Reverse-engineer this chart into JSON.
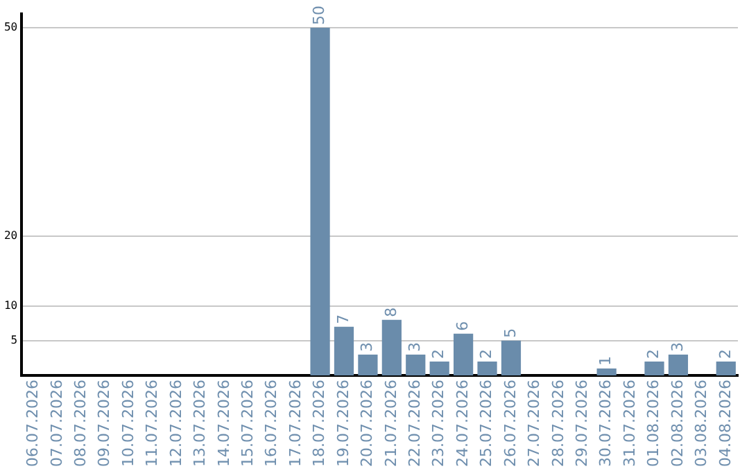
{
  "chart_data": {
    "type": "bar",
    "categories": [
      "06.07.2026",
      "07.07.2026",
      "08.07.2026",
      "09.07.2026",
      "10.07.2026",
      "11.07.2026",
      "12.07.2026",
      "13.07.2026",
      "14.07.2026",
      "15.07.2026",
      "16.07.2026",
      "17.07.2026",
      "18.07.2026",
      "19.07.2026",
      "20.07.2026",
      "21.07.2026",
      "22.07.2026",
      "23.07.2026",
      "24.07.2026",
      "25.07.2026",
      "26.07.2026",
      "27.07.2026",
      "28.07.2026",
      "29.07.2026",
      "30.07.2026",
      "31.07.2026",
      "01.08.2026",
      "02.08.2026",
      "03.08.2026",
      "04.08.2026"
    ],
    "values": [
      null,
      null,
      null,
      null,
      null,
      null,
      null,
      null,
      null,
      null,
      null,
      null,
      50,
      7,
      3,
      8,
      3,
      2,
      6,
      2,
      5,
      null,
      null,
      null,
      1,
      null,
      2,
      3,
      null,
      2
    ],
    "color": "#6a8cab",
    "ylim": [
      0,
      52
    ],
    "yticks": [
      5,
      10,
      20,
      50
    ],
    "grid": "y",
    "legend": false,
    "data_labels": true
  }
}
